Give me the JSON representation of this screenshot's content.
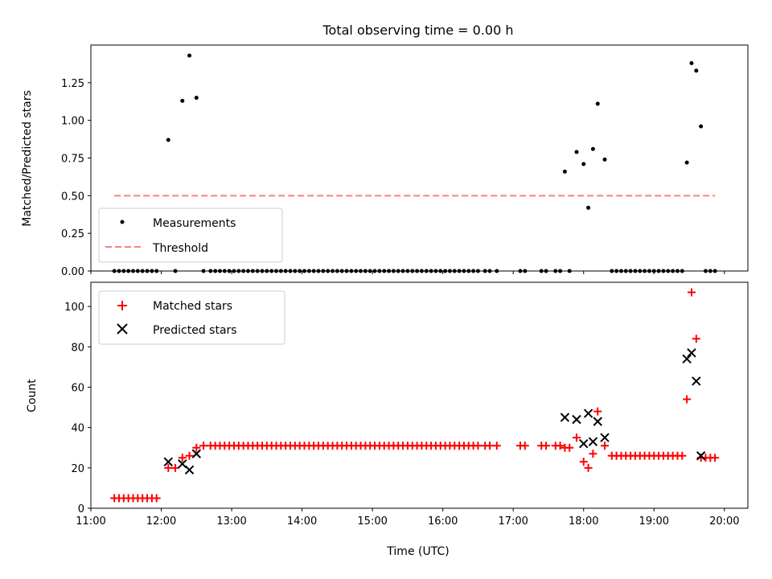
{
  "title": "Total observing time = 0.00 h",
  "xlabel": "Time (UTC)",
  "x_ticks": [
    "11:00",
    "12:00",
    "13:00",
    "14:00",
    "15:00",
    "16:00",
    "17:00",
    "18:00",
    "19:00",
    "20:00"
  ],
  "colors": {
    "measurements": "#000000",
    "threshold": "#ff7f7f",
    "matched": "#ff0000",
    "predicted": "#000000"
  },
  "chart_data": [
    {
      "type": "scatter",
      "ylabel": "Matched/Predicted stars",
      "xlim": [
        "11:00",
        "20:20"
      ],
      "ylim": [
        0,
        1.5
      ],
      "y_ticks": [
        "0.00",
        "0.25",
        "0.50",
        "0.75",
        "1.00",
        "1.25"
      ],
      "legend": {
        "position": "lower-left",
        "entries": [
          "Measurements",
          "Threshold"
        ]
      },
      "threshold": {
        "name": "Threshold",
        "value": 0.5,
        "x": [
          "11:20",
          "19:52"
        ]
      },
      "series": [
        {
          "name": "Measurements",
          "points": [
            [
              "11:20",
              0
            ],
            [
              "11:24",
              0
            ],
            [
              "11:28",
              0
            ],
            [
              "11:32",
              0
            ],
            [
              "11:36",
              0
            ],
            [
              "11:40",
              0
            ],
            [
              "11:44",
              0
            ],
            [
              "11:48",
              0
            ],
            [
              "11:52",
              0
            ],
            [
              "11:56",
              0
            ],
            [
              "12:06",
              0.87
            ],
            [
              "12:12",
              0
            ],
            [
              "12:18",
              1.13
            ],
            [
              "12:24",
              1.43
            ],
            [
              "12:30",
              1.15
            ],
            [
              "12:36",
              0
            ],
            [
              "12:42",
              0
            ],
            [
              "12:46",
              0
            ],
            [
              "12:50",
              0
            ],
            [
              "12:54",
              0
            ],
            [
              "12:58",
              0
            ],
            [
              "13:02",
              0
            ],
            [
              "13:06",
              0
            ],
            [
              "13:10",
              0
            ],
            [
              "13:14",
              0
            ],
            [
              "13:18",
              0
            ],
            [
              "13:22",
              0
            ],
            [
              "13:26",
              0
            ],
            [
              "13:30",
              0
            ],
            [
              "13:34",
              0
            ],
            [
              "13:38",
              0
            ],
            [
              "13:42",
              0
            ],
            [
              "13:46",
              0
            ],
            [
              "13:50",
              0
            ],
            [
              "13:54",
              0
            ],
            [
              "13:58",
              0
            ],
            [
              "14:02",
              0
            ],
            [
              "14:06",
              0
            ],
            [
              "14:10",
              0
            ],
            [
              "14:14",
              0
            ],
            [
              "14:18",
              0
            ],
            [
              "14:22",
              0
            ],
            [
              "14:26",
              0
            ],
            [
              "14:30",
              0
            ],
            [
              "14:34",
              0
            ],
            [
              "14:38",
              0
            ],
            [
              "14:42",
              0
            ],
            [
              "14:46",
              0
            ],
            [
              "14:50",
              0
            ],
            [
              "14:54",
              0
            ],
            [
              "14:58",
              0
            ],
            [
              "15:02",
              0
            ],
            [
              "15:06",
              0
            ],
            [
              "15:10",
              0
            ],
            [
              "15:14",
              0
            ],
            [
              "15:18",
              0
            ],
            [
              "15:22",
              0
            ],
            [
              "15:26",
              0
            ],
            [
              "15:30",
              0
            ],
            [
              "15:34",
              0
            ],
            [
              "15:38",
              0
            ],
            [
              "15:42",
              0
            ],
            [
              "15:46",
              0
            ],
            [
              "15:50",
              0
            ],
            [
              "15:54",
              0
            ],
            [
              "15:58",
              0
            ],
            [
              "16:02",
              0
            ],
            [
              "16:06",
              0
            ],
            [
              "16:10",
              0
            ],
            [
              "16:14",
              0
            ],
            [
              "16:18",
              0
            ],
            [
              "16:22",
              0
            ],
            [
              "16:26",
              0
            ],
            [
              "16:30",
              0
            ],
            [
              "16:36",
              0
            ],
            [
              "16:40",
              0
            ],
            [
              "16:46",
              0
            ],
            [
              "17:06",
              0
            ],
            [
              "17:10",
              0
            ],
            [
              "17:24",
              0
            ],
            [
              "17:28",
              0
            ],
            [
              "17:36",
              0
            ],
            [
              "17:40",
              0
            ],
            [
              "17:44",
              0.66
            ],
            [
              "17:48",
              0
            ],
            [
              "17:54",
              0.79
            ],
            [
              "18:00",
              0.71
            ],
            [
              "18:04",
              0.42
            ],
            [
              "18:08",
              0.81
            ],
            [
              "18:12",
              1.11
            ],
            [
              "18:18",
              0.74
            ],
            [
              "18:24",
              0
            ],
            [
              "18:28",
              0
            ],
            [
              "18:32",
              0
            ],
            [
              "18:36",
              0
            ],
            [
              "18:40",
              0
            ],
            [
              "18:44",
              0
            ],
            [
              "18:48",
              0
            ],
            [
              "18:52",
              0
            ],
            [
              "18:56",
              0
            ],
            [
              "19:00",
              0
            ],
            [
              "19:04",
              0
            ],
            [
              "19:08",
              0
            ],
            [
              "19:12",
              0
            ],
            [
              "19:16",
              0
            ],
            [
              "19:20",
              0
            ],
            [
              "19:24",
              0
            ],
            [
              "19:28",
              0.72
            ],
            [
              "19:32",
              1.38
            ],
            [
              "19:36",
              1.33
            ],
            [
              "19:40",
              0.96
            ],
            [
              "19:44",
              0
            ],
            [
              "19:48",
              0
            ],
            [
              "19:52",
              0
            ]
          ]
        }
      ]
    },
    {
      "type": "scatter",
      "ylabel": "Count",
      "xlabel": "Time (UTC)",
      "xlim": [
        "11:00",
        "20:20"
      ],
      "ylim": [
        0,
        112
      ],
      "y_ticks": [
        "0",
        "20",
        "40",
        "60",
        "80",
        "100"
      ],
      "legend": {
        "position": "upper-left",
        "entries": [
          "Matched stars",
          "Predicted stars"
        ]
      },
      "series": [
        {
          "name": "Matched stars",
          "marker": "+",
          "points": [
            [
              "11:20",
              5
            ],
            [
              "11:24",
              5
            ],
            [
              "11:28",
              5
            ],
            [
              "11:32",
              5
            ],
            [
              "11:36",
              5
            ],
            [
              "11:40",
              5
            ],
            [
              "11:44",
              5
            ],
            [
              "11:48",
              5
            ],
            [
              "11:52",
              5
            ],
            [
              "11:56",
              5
            ],
            [
              "12:06",
              20
            ],
            [
              "12:12",
              20
            ],
            [
              "12:18",
              25
            ],
            [
              "12:24",
              26
            ],
            [
              "12:30",
              30
            ],
            [
              "12:36",
              31
            ],
            [
              "12:42",
              31
            ],
            [
              "12:46",
              31
            ],
            [
              "12:50",
              31
            ],
            [
              "12:54",
              31
            ],
            [
              "12:58",
              31
            ],
            [
              "13:02",
              31
            ],
            [
              "13:06",
              31
            ],
            [
              "13:10",
              31
            ],
            [
              "13:14",
              31
            ],
            [
              "13:18",
              31
            ],
            [
              "13:22",
              31
            ],
            [
              "13:26",
              31
            ],
            [
              "13:30",
              31
            ],
            [
              "13:34",
              31
            ],
            [
              "13:38",
              31
            ],
            [
              "13:42",
              31
            ],
            [
              "13:46",
              31
            ],
            [
              "13:50",
              31
            ],
            [
              "13:54",
              31
            ],
            [
              "13:58",
              31
            ],
            [
              "14:02",
              31
            ],
            [
              "14:06",
              31
            ],
            [
              "14:10",
              31
            ],
            [
              "14:14",
              31
            ],
            [
              "14:18",
              31
            ],
            [
              "14:22",
              31
            ],
            [
              "14:26",
              31
            ],
            [
              "14:30",
              31
            ],
            [
              "14:34",
              31
            ],
            [
              "14:38",
              31
            ],
            [
              "14:42",
              31
            ],
            [
              "14:46",
              31
            ],
            [
              "14:50",
              31
            ],
            [
              "14:54",
              31
            ],
            [
              "14:58",
              31
            ],
            [
              "15:02",
              31
            ],
            [
              "15:06",
              31
            ],
            [
              "15:10",
              31
            ],
            [
              "15:14",
              31
            ],
            [
              "15:18",
              31
            ],
            [
              "15:22",
              31
            ],
            [
              "15:26",
              31
            ],
            [
              "15:30",
              31
            ],
            [
              "15:34",
              31
            ],
            [
              "15:38",
              31
            ],
            [
              "15:42",
              31
            ],
            [
              "15:46",
              31
            ],
            [
              "15:50",
              31
            ],
            [
              "15:54",
              31
            ],
            [
              "15:58",
              31
            ],
            [
              "16:02",
              31
            ],
            [
              "16:06",
              31
            ],
            [
              "16:10",
              31
            ],
            [
              "16:14",
              31
            ],
            [
              "16:18",
              31
            ],
            [
              "16:22",
              31
            ],
            [
              "16:26",
              31
            ],
            [
              "16:30",
              31
            ],
            [
              "16:36",
              31
            ],
            [
              "16:40",
              31
            ],
            [
              "16:46",
              31
            ],
            [
              "17:06",
              31
            ],
            [
              "17:10",
              31
            ],
            [
              "17:24",
              31
            ],
            [
              "17:28",
              31
            ],
            [
              "17:36",
              31
            ],
            [
              "17:40",
              31
            ],
            [
              "17:44",
              30
            ],
            [
              "17:48",
              30
            ],
            [
              "17:54",
              35
            ],
            [
              "18:00",
              23
            ],
            [
              "18:04",
              20
            ],
            [
              "18:08",
              27
            ],
            [
              "18:12",
              48
            ],
            [
              "18:18",
              31
            ],
            [
              "18:24",
              26
            ],
            [
              "18:28",
              26
            ],
            [
              "18:32",
              26
            ],
            [
              "18:36",
              26
            ],
            [
              "18:40",
              26
            ],
            [
              "18:44",
              26
            ],
            [
              "18:48",
              26
            ],
            [
              "18:52",
              26
            ],
            [
              "18:56",
              26
            ],
            [
              "19:00",
              26
            ],
            [
              "19:04",
              26
            ],
            [
              "19:08",
              26
            ],
            [
              "19:12",
              26
            ],
            [
              "19:16",
              26
            ],
            [
              "19:20",
              26
            ],
            [
              "19:24",
              26
            ],
            [
              "19:28",
              54
            ],
            [
              "19:32",
              107
            ],
            [
              "19:36",
              84
            ],
            [
              "19:40",
              25
            ],
            [
              "19:44",
              25
            ],
            [
              "19:48",
              25
            ],
            [
              "19:52",
              25
            ]
          ]
        },
        {
          "name": "Predicted stars",
          "marker": "x",
          "points": [
            [
              "12:06",
              23
            ],
            [
              "12:18",
              22
            ],
            [
              "12:24",
              19
            ],
            [
              "12:30",
              27
            ],
            [
              "17:44",
              45
            ],
            [
              "17:54",
              44
            ],
            [
              "18:00",
              32
            ],
            [
              "18:04",
              47
            ],
            [
              "18:08",
              33
            ],
            [
              "18:12",
              43
            ],
            [
              "18:18",
              35
            ],
            [
              "19:28",
              74
            ],
            [
              "19:32",
              77
            ],
            [
              "19:36",
              63
            ],
            [
              "19:40",
              26
            ]
          ]
        }
      ]
    }
  ]
}
